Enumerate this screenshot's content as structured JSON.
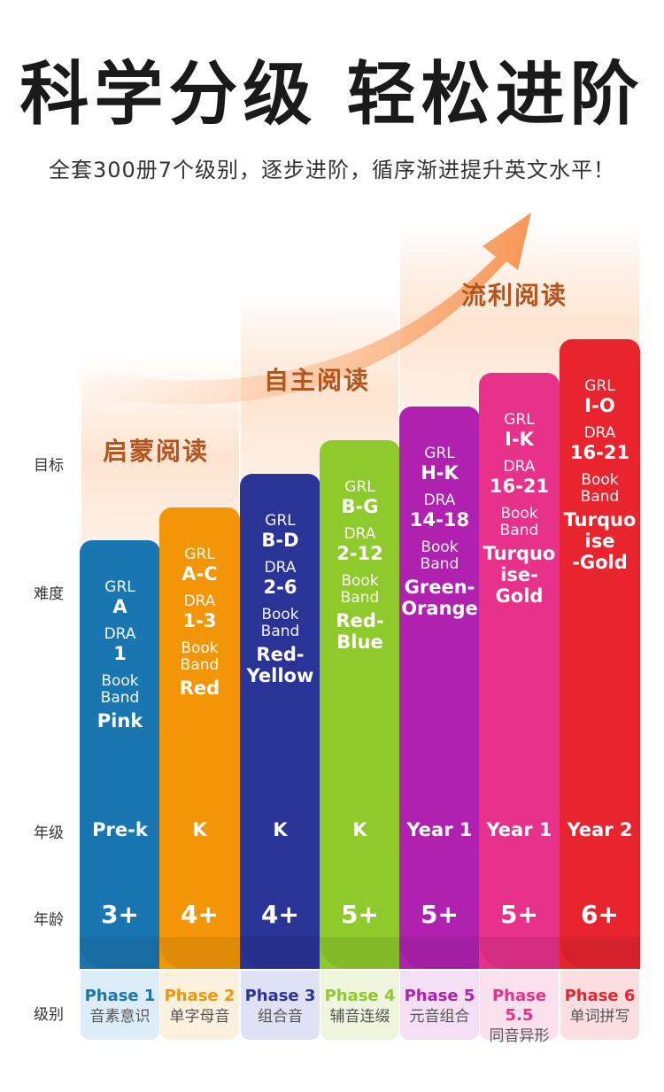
{
  "title": "科学分级  轻松进阶",
  "subtitle": "全套300册7个级别，逐步进阶，循序渐进提升英文水平！",
  "stages": [
    "启蒙阅读",
    "自主阅读",
    "流利阅读"
  ],
  "row_labels": {
    "goal": "目标",
    "difficulty": "难度",
    "grade": "年级",
    "age": "年龄",
    "level": "级别"
  },
  "labels": {
    "grl": "GRL",
    "dra": "DRA",
    "book_band": "Book Band"
  },
  "phases": [
    {
      "grl": "A",
      "dra": "1",
      "band": "Pink",
      "grade": "Pre-k",
      "age": "3+",
      "phase": "Phase 1",
      "phonics": "音素意识",
      "color": "#1976b0",
      "tint": "#dcedf8"
    },
    {
      "grl": "A-C",
      "dra": "1-3",
      "band": "Red",
      "grade": "K",
      "age": "4+",
      "phase": "Phase 2",
      "phonics": "单字母音",
      "color": "#f29608",
      "tint": "#fcf1dc"
    },
    {
      "grl": "B-D",
      "dra": "2-6",
      "band": "Red-\nYellow",
      "grade": "K",
      "age": "4+",
      "phase": "Phase 3",
      "phonics": "组合音",
      "color": "#2a3497",
      "tint": "#dfe1f4"
    },
    {
      "grl": "B-G",
      "dra": "2-12",
      "band": "Red-\nBlue",
      "grade": "K",
      "age": "5+",
      "phase": "Phase 4",
      "phonics": "辅音连缀",
      "color": "#8fca2c",
      "tint": "#eef7de"
    },
    {
      "grl": "H-K",
      "dra": "14-18",
      "band": "Green-\nOrange",
      "grade": "Year 1",
      "age": "5+",
      "phase": "Phase 5",
      "phonics": "元音组合",
      "color": "#b021b0",
      "tint": "#f5dff5"
    },
    {
      "grl": "I-K",
      "dra": "16-21",
      "band": "Turquo\nise-\nGold",
      "grade": "Year 1",
      "age": "5+",
      "phase": "Phase 5.5",
      "phonics": "同音异形",
      "color": "#e7318a",
      "tint": "#fbe0ee"
    },
    {
      "grl": "I-O",
      "dra": "16-21",
      "band": "Turquo\nise\n-Gold",
      "grade": "Year 2",
      "age": "6+",
      "phase": "Phase 6",
      "phonics": "单词拼写",
      "color": "#e8242e",
      "tint": "#fbdfe0"
    }
  ]
}
